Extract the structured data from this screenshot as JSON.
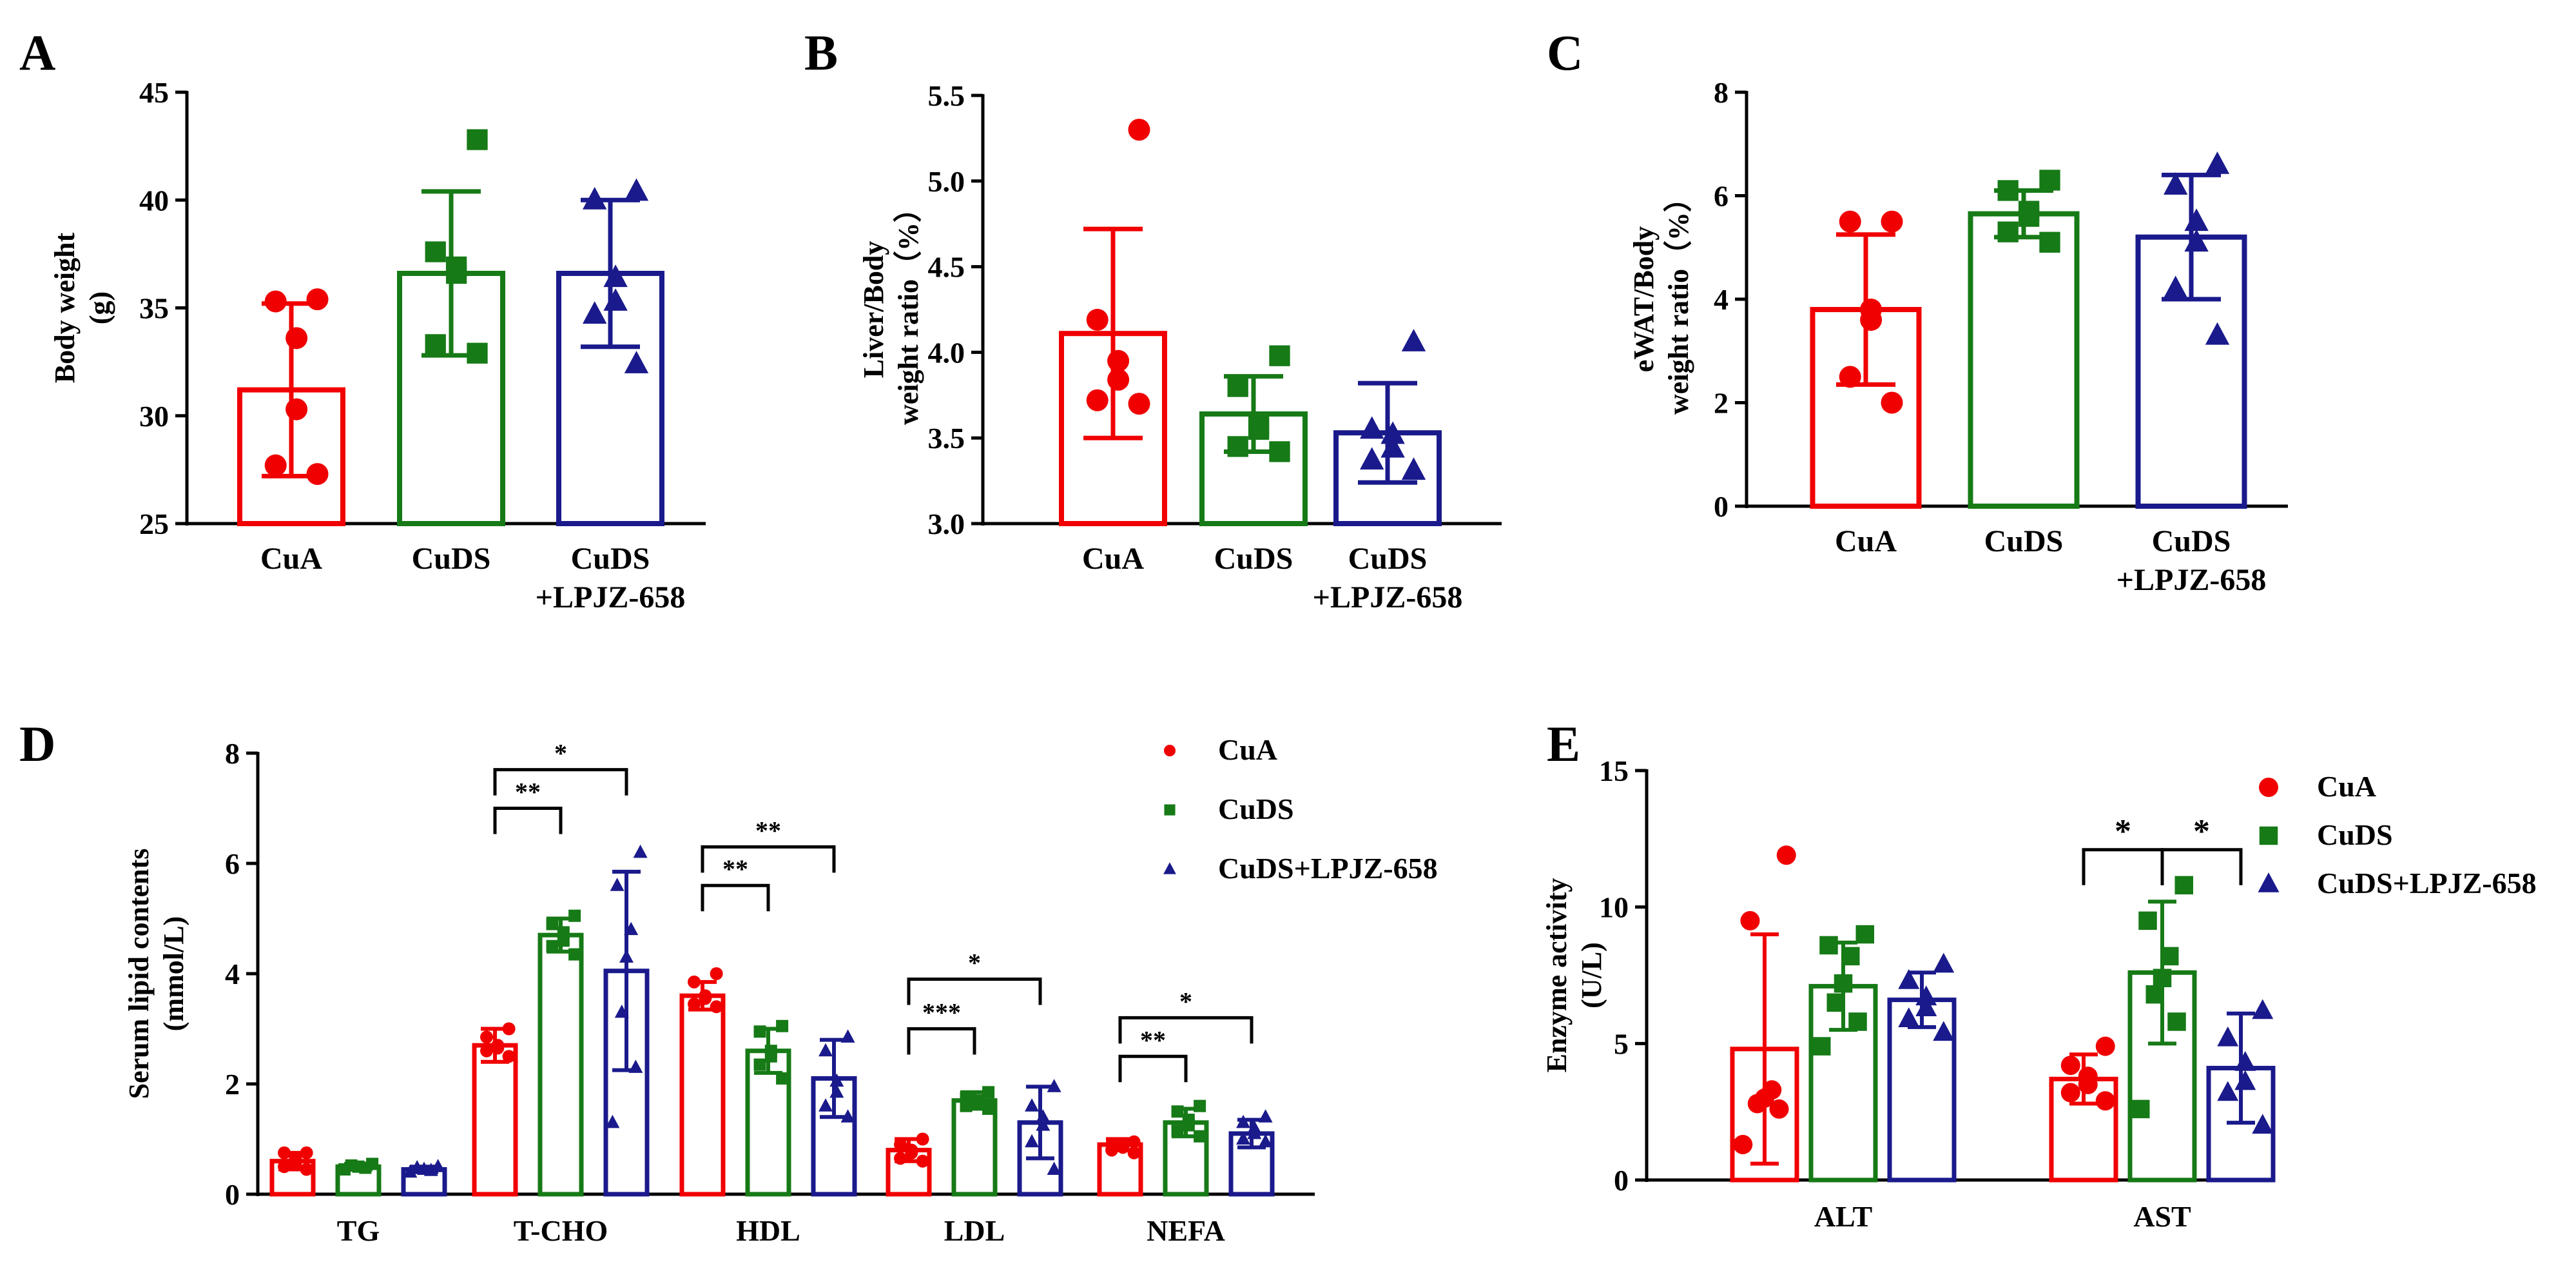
{
  "colors": {
    "CuA": "#f00000",
    "CuDS": "#167a16",
    "LPJZ": "#1a1a8c"
  },
  "chart_data": [
    {
      "panel": "A",
      "type": "bar",
      "ylabel_lines": [
        "Body weight",
        "(g)"
      ],
      "ylim": [
        25,
        45
      ],
      "yticks": [
        25,
        30,
        35,
        40,
        45
      ],
      "groups": [
        {
          "label_lines": [
            "CuA"
          ],
          "series": "CuA",
          "marker": "circle",
          "mean": 31.2,
          "sd": 4.0,
          "points": [
            35.4,
            35.3,
            33.6,
            30.3,
            27.7,
            27.3
          ]
        },
        {
          "label_lines": [
            "CuDS"
          ],
          "series": "CuDS",
          "marker": "square",
          "mean": 36.6,
          "sd": 3.8,
          "points": [
            42.8,
            37.6,
            36.9,
            36.6,
            33.3,
            32.9
          ]
        },
        {
          "label_lines": [
            "CuDS",
            "+LPJZ-658"
          ],
          "series": "LPJZ",
          "marker": "triangle",
          "mean": 36.6,
          "sd": 3.4,
          "points": [
            40.4,
            40.0,
            36.4,
            35.3,
            34.7,
            32.4
          ]
        }
      ]
    },
    {
      "panel": "B",
      "type": "bar",
      "ylabel_lines": [
        "Liver/Body",
        "weight ratio（%）"
      ],
      "ylim": [
        3.0,
        5.5
      ],
      "yticks": [
        3.0,
        3.5,
        4.0,
        4.5,
        5.0,
        5.5
      ],
      "groups": [
        {
          "label_lines": [
            "CuA"
          ],
          "series": "CuA",
          "marker": "circle",
          "mean": 4.11,
          "sd": 0.61,
          "points": [
            5.3,
            4.19,
            3.95,
            3.84,
            3.72,
            3.7
          ]
        },
        {
          "label_lines": [
            "CuDS"
          ],
          "series": "CuDS",
          "marker": "square",
          "mean": 3.64,
          "sd": 0.22,
          "points": [
            3.98,
            3.8,
            3.57,
            3.55,
            3.45,
            3.42
          ]
        },
        {
          "label_lines": [
            "CuDS",
            "+LPJZ-658"
          ],
          "series": "LPJZ",
          "marker": "triangle",
          "mean": 3.53,
          "sd": 0.29,
          "points": [
            4.06,
            3.55,
            3.52,
            3.44,
            3.37,
            3.31
          ]
        }
      ]
    },
    {
      "panel": "C",
      "type": "bar",
      "ylabel_lines": [
        "eWAT/Body",
        "weight ratio（%）"
      ],
      "ylim": [
        0,
        8
      ],
      "yticks": [
        0,
        2,
        4,
        6,
        8
      ],
      "groups": [
        {
          "label_lines": [
            "CuA"
          ],
          "series": "CuA",
          "marker": "circle",
          "mean": 3.8,
          "sd": 1.45,
          "points": [
            5.5,
            5.5,
            3.8,
            3.6,
            2.5,
            2.0
          ]
        },
        {
          "label_lines": [
            "CuDS"
          ],
          "series": "CuDS",
          "marker": "square",
          "mean": 5.65,
          "sd": 0.45,
          "points": [
            6.3,
            6.1,
            5.7,
            5.6,
            5.3,
            5.1
          ]
        },
        {
          "label_lines": [
            "CuDS",
            "+LPJZ-658"
          ],
          "series": "LPJZ",
          "marker": "triangle",
          "mean": 5.2,
          "sd": 1.2,
          "points": [
            6.6,
            6.2,
            5.5,
            5.1,
            4.2,
            3.3
          ]
        }
      ]
    },
    {
      "panel": "D",
      "type": "bar",
      "ylabel_lines": [
        "Serum lipid contents",
        "(mmol/L)"
      ],
      "ylim": [
        0,
        8
      ],
      "yticks": [
        0,
        2,
        4,
        6,
        8
      ],
      "categories": [
        "TG",
        "T-CHO",
        "HDL",
        "LDL",
        "NEFA"
      ],
      "legend": [
        "CuA",
        "CuDS",
        "CuDS+LPJZ-658"
      ],
      "series": [
        {
          "name": "CuA",
          "key": "CuA",
          "marker": "circle",
          "means": [
            0.6,
            2.7,
            3.6,
            0.8,
            0.9
          ],
          "sds": [
            0.15,
            0.3,
            0.25,
            0.2,
            0.1
          ],
          "points": [
            [
              0.75,
              0.75,
              0.65,
              0.55,
              0.5,
              0.45
            ],
            [
              3.0,
              2.85,
              2.7,
              2.65,
              2.6,
              2.5
            ],
            [
              4.0,
              3.85,
              3.6,
              3.55,
              3.45,
              3.4
            ],
            [
              1.0,
              0.9,
              0.8,
              0.75,
              0.65,
              0.6
            ],
            [
              0.95,
              0.9,
              0.9,
              0.85,
              0.8,
              0.75
            ]
          ]
        },
        {
          "name": "CuDS",
          "key": "CuDS",
          "marker": "square",
          "means": [
            0.5,
            4.7,
            2.6,
            1.7,
            1.3
          ],
          "sds": [
            0.05,
            0.3,
            0.4,
            0.15,
            0.25
          ],
          "points": [
            [
              0.55,
              0.52,
              0.5,
              0.48,
              0.45
            ],
            [
              5.05,
              4.9,
              4.75,
              4.6,
              4.5,
              4.35
            ],
            [
              3.05,
              2.95,
              2.6,
              2.5,
              2.35,
              2.1
            ],
            [
              1.85,
              1.75,
              1.7,
              1.65,
              1.6,
              1.55
            ],
            [
              1.6,
              1.5,
              1.35,
              1.25,
              1.15,
              1.05
            ]
          ]
        },
        {
          "name": "CuDS+LPJZ-658",
          "key": "LPJZ",
          "marker": "triangle",
          "means": [
            0.45,
            4.05,
            2.1,
            1.3,
            1.1
          ],
          "sds": [
            0.05,
            1.8,
            0.7,
            0.65,
            0.25
          ],
          "points": [
            [
              0.5,
              0.48,
              0.45,
              0.43,
              0.4
            ],
            [
              6.2,
              5.6,
              4.8,
              4.3,
              3.3,
              2.3,
              1.3
            ],
            [
              2.85,
              2.6,
              2.05,
              1.85,
              1.6,
              1.4
            ],
            [
              1.95,
              1.6,
              1.4,
              1.25,
              0.95,
              0.45
            ],
            [
              1.4,
              1.3,
              1.2,
              1.1,
              1.0,
              0.95
            ]
          ]
        }
      ],
      "brackets": [
        {
          "cat": 1,
          "from": 0,
          "to": 1,
          "y": 7.0,
          "label": "**"
        },
        {
          "cat": 1,
          "from": 0,
          "to": 2,
          "y": 7.7,
          "label": "*"
        },
        {
          "cat": 2,
          "from": 0,
          "to": 1,
          "y": 5.6,
          "label": "**"
        },
        {
          "cat": 2,
          "from": 0,
          "to": 2,
          "y": 6.3,
          "label": "**"
        },
        {
          "cat": 3,
          "from": 0,
          "to": 1,
          "y": 3.0,
          "label": "***"
        },
        {
          "cat": 3,
          "from": 0,
          "to": 2,
          "y": 3.9,
          "label": "*"
        },
        {
          "cat": 4,
          "from": 0,
          "to": 1,
          "y": 2.5,
          "label": "**"
        },
        {
          "cat": 4,
          "from": 0,
          "to": 2,
          "y": 3.2,
          "label": "*"
        }
      ]
    },
    {
      "panel": "E",
      "type": "bar",
      "ylabel_lines": [
        "Enzyme activity",
        "(U/L)"
      ],
      "ylim": [
        0,
        15
      ],
      "yticks": [
        0,
        5,
        10,
        15
      ],
      "categories": [
        "ALT",
        "AST"
      ],
      "legend": [
        "CuA",
        "CuDS",
        "CuDS+LPJZ-658"
      ],
      "series": [
        {
          "name": "CuA",
          "key": "CuA",
          "marker": "circle",
          "means": [
            4.8,
            3.7
          ],
          "sds": [
            4.2,
            0.9
          ],
          "points": [
            [
              11.9,
              9.5,
              3.3,
              3.0,
              2.8,
              2.6,
              1.3
            ],
            [
              4.9,
              4.2,
              3.8,
              3.5,
              3.2,
              2.9
            ]
          ]
        },
        {
          "name": "CuDS",
          "key": "CuDS",
          "marker": "square",
          "means": [
            7.1,
            7.6
          ],
          "sds": [
            1.6,
            2.6
          ],
          "points": [
            [
              9.0,
              8.6,
              8.2,
              7.2,
              6.5,
              5.8,
              4.9
            ],
            [
              10.8,
              9.5,
              8.2,
              7.4,
              6.8,
              5.8,
              2.6
            ]
          ]
        },
        {
          "name": "CuDS+LPJZ-658",
          "key": "LPJZ",
          "marker": "triangle",
          "means": [
            6.6,
            4.1
          ],
          "sds": [
            1.0,
            2.0
          ],
          "points": [
            [
              7.9,
              7.3,
              6.7,
              6.3,
              5.9,
              5.4
            ],
            [
              6.2,
              5.2,
              4.3,
              3.6,
              3.2,
              2.0
            ]
          ]
        }
      ],
      "brackets": [
        {
          "cat": 1,
          "from": 0,
          "to": 1,
          "y": 12.1,
          "label": "*"
        },
        {
          "cat": 1,
          "from": 1,
          "to": 2,
          "y": 12.1,
          "label": "*"
        }
      ]
    }
  ]
}
